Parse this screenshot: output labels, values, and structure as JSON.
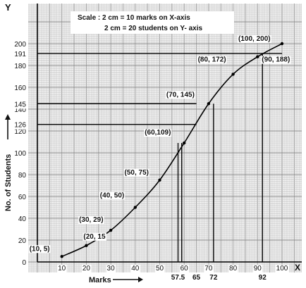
{
  "chart_data": {
    "type": "line",
    "axis_letters": {
      "y": "Y",
      "x": "X"
    },
    "scale_text": [
      "Scale : 2 cm = 10 marks on X-axis",
      "2 cm = 20 students on Y- axis"
    ],
    "xlabel": "Marks",
    "ylabel": "No. of Students",
    "xlim": [
      0,
      100
    ],
    "ylim": [
      0,
      200
    ],
    "x_ticks": [
      "10",
      "20",
      "30",
      "40",
      "50",
      "60",
      "70",
      "80",
      "90",
      "100"
    ],
    "y_ticks": [
      "20",
      "40",
      "60",
      "80",
      "100",
      "120",
      "140",
      "160",
      "180",
      "200"
    ],
    "origin_y_label": "0",
    "extra_y_ticks": [
      {
        "value": 191,
        "label": "191"
      },
      {
        "value": 145,
        "label": "145"
      },
      {
        "value": 126,
        "label": "126"
      }
    ],
    "extra_x_ticks": [
      {
        "value": 57.5,
        "label": "57.5"
      },
      {
        "value": 65,
        "label": "65"
      },
      {
        "value": 72,
        "label": "72"
      },
      {
        "value": 92,
        "label": "92"
      }
    ],
    "points": [
      {
        "x": 10,
        "y": 5,
        "label": "(10, 5)"
      },
      {
        "x": 20,
        "y": 15,
        "label": "(20, 15"
      },
      {
        "x": 30,
        "y": 29,
        "label": "(30, 29)"
      },
      {
        "x": 40,
        "y": 50,
        "label": "(40, 50)"
      },
      {
        "x": 50,
        "y": 75,
        "label": "(50, 75)"
      },
      {
        "x": 60,
        "y": 109,
        "label": "(60,109)"
      },
      {
        "x": 70,
        "y": 145,
        "label": "(70, 145)"
      },
      {
        "x": 80,
        "y": 172,
        "label": "(80, 172)"
      },
      {
        "x": 90,
        "y": 188,
        "label": "(90, 188)"
      },
      {
        "x": 100,
        "y": 200,
        "label": "(100, 200)"
      }
    ],
    "guide_lines": [
      {
        "y": 191,
        "x_end": 100
      },
      {
        "y": 145,
        "x_end": 65
      },
      {
        "y": 126,
        "x_end": 65
      },
      {
        "x": 57.5,
        "y_end": 109
      },
      {
        "x": 59,
        "y_end": 109
      },
      {
        "x": 72,
        "y_end": 145
      },
      {
        "x": 92,
        "y_end": 191
      }
    ],
    "grid": true,
    "colors": {
      "curve": "#000000",
      "grid": "#bdbdbd",
      "ink": "#111111"
    }
  }
}
